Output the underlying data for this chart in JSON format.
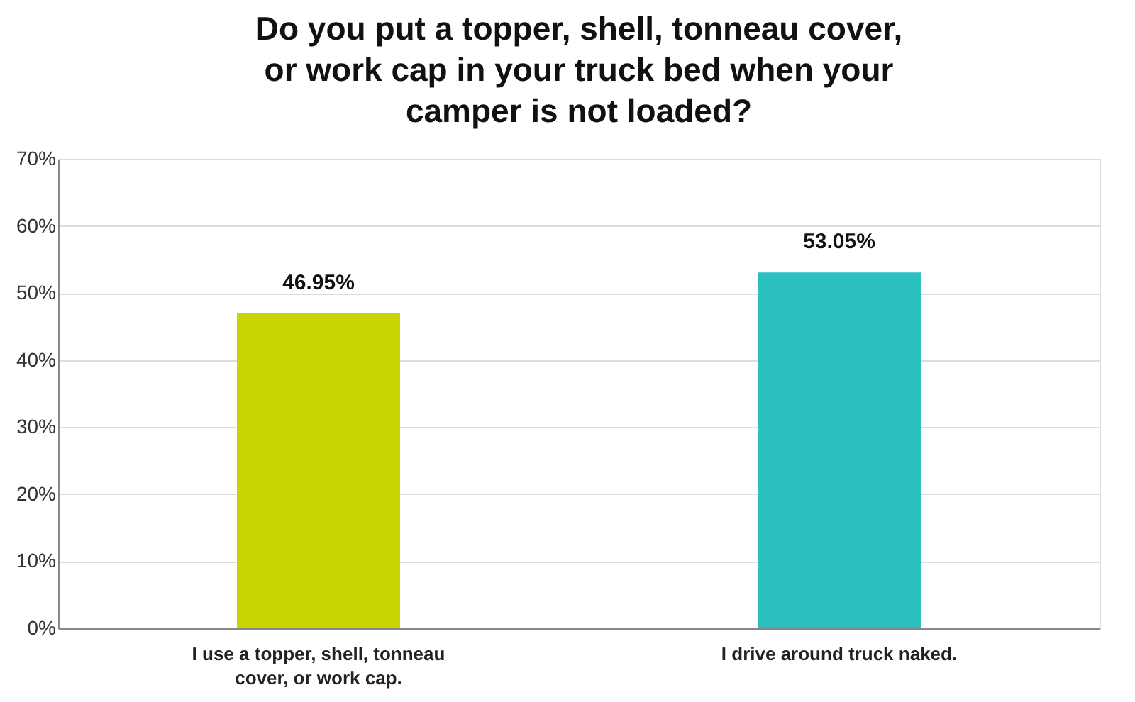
{
  "chart_data": {
    "type": "bar",
    "title": "Do you put a topper, shell, tonneau cover, or work cap in your truck bed when your camper is not loaded?",
    "categories": [
      "I use a topper, shell, tonneau cover, or work cap.",
      "I drive around truck naked."
    ],
    "values": [
      46.95,
      53.05
    ],
    "colors": [
      "#c9d400",
      "#2cbfc0"
    ],
    "value_labels": [
      "46.95%",
      "53.05%"
    ],
    "ylim": [
      0,
      70
    ],
    "yticks": [
      {
        "value": 0,
        "label": "0%"
      },
      {
        "value": 10,
        "label": "10%"
      },
      {
        "value": 20,
        "label": "20%"
      },
      {
        "value": 30,
        "label": "30%"
      },
      {
        "value": 40,
        "label": "40%"
      },
      {
        "value": 50,
        "label": "50%"
      },
      {
        "value": 60,
        "label": "60%"
      },
      {
        "value": 70,
        "label": "70%"
      }
    ],
    "grid": "y",
    "legend": false
  }
}
